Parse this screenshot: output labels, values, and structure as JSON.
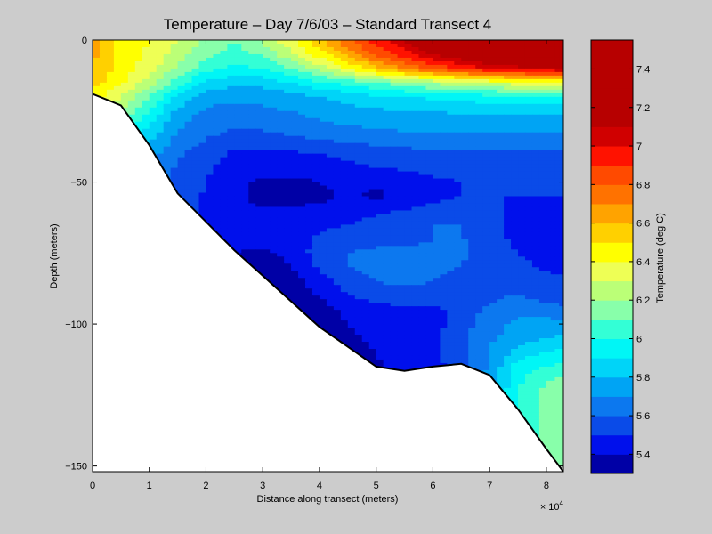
{
  "chart_data": {
    "type": "heatmap",
    "subtype": "filled-contour",
    "title": "Temperature – Day 7/6/03 – Standard Transect 4",
    "xlabel": "Distance along transect (meters)",
    "ylabel": "Depth (meters)",
    "x_exponent_label": "× 10",
    "x_exponent_power": "4",
    "xlim": [
      0,
      83000
    ],
    "ylim": [
      -152,
      0
    ],
    "x_ticks": [
      0,
      10000,
      20000,
      30000,
      40000,
      50000,
      60000,
      70000,
      80000
    ],
    "x_tick_labels": [
      "0",
      "1",
      "2",
      "3",
      "4",
      "5",
      "6",
      "7",
      "8"
    ],
    "y_ticks": [
      0,
      -50,
      -100,
      -150
    ],
    "y_tick_labels": [
      "0",
      "−50",
      "−100",
      "−150"
    ],
    "grid": false,
    "colorbar": {
      "label": "Temperature (deg C)",
      "range": [
        5.3,
        7.55
      ],
      "levels": [
        5.3,
        5.4,
        5.5,
        5.6,
        5.7,
        5.8,
        5.9,
        6.0,
        6.1,
        6.2,
        6.3,
        6.4,
        6.5,
        6.6,
        6.7,
        6.8,
        6.9,
        7.0,
        7.1,
        7.2,
        7.3,
        7.4,
        7.55
      ],
      "colors": [
        "#0000a6",
        "#0010ec",
        "#0a4be8",
        "#0c78ef",
        "#00a4f4",
        "#00d4f8",
        "#00f6f6",
        "#33ffd6",
        "#88ffaa",
        "#bbff77",
        "#eeff55",
        "#ffff00",
        "#ffd000",
        "#ffa300",
        "#ff7200",
        "#ff4a00",
        "#ff1200",
        "#d00000",
        "#b70000",
        "#b70000",
        "#b70000",
        "#b70000"
      ],
      "tick_values": [
        5.4,
        5.6,
        5.8,
        6.0,
        6.2,
        6.4,
        6.6,
        6.8,
        7.0,
        7.2,
        7.4
      ],
      "tick_labels": [
        "5.4",
        "5.6",
        "5.8",
        "6",
        "6.2",
        "6.4",
        "6.6",
        "6.8",
        "7",
        "7.2",
        "7.4"
      ]
    },
    "bathymetry": {
      "x": [
        0,
        5000,
        10000,
        15000,
        20000,
        25000,
        30000,
        35000,
        40000,
        45000,
        50000,
        55000,
        60000,
        65000,
        70000,
        75000,
        80000,
        83000
      ],
      "depth": [
        -19,
        -23,
        -37,
        -54,
        -64,
        -74,
        -83,
        -92,
        -101,
        -108,
        -115,
        -116.5,
        -115,
        -114,
        -118,
        -130,
        -144,
        -152
      ]
    },
    "temperature_grid": {
      "x": [
        0,
        5000,
        10000,
        15000,
        20000,
        25000,
        30000,
        35000,
        40000,
        45000,
        50000,
        55000,
        60000,
        65000,
        70000,
        75000,
        80000,
        83000
      ],
      "depth": [
        0,
        -5,
        -10,
        -15,
        -20,
        -25,
        -30,
        -35,
        -40,
        -45,
        -50,
        -55,
        -60,
        -65,
        -70,
        -75,
        -80,
        -85,
        -90,
        -95,
        -100,
        -105,
        -110,
        -115,
        -120,
        -125,
        -130,
        -135,
        -140,
        -145,
        -150
      ],
      "values": [
        [
          6.62,
          6.48,
          6.4,
          6.3,
          6.18,
          6.1,
          6.22,
          6.38,
          6.58,
          6.78,
          6.95,
          7.1,
          7.25,
          7.35,
          7.48,
          7.52,
          7.52,
          7.52
        ],
        [
          6.62,
          6.48,
          6.38,
          6.26,
          6.12,
          6.06,
          6.12,
          6.28,
          6.46,
          6.64,
          6.82,
          6.96,
          7.1,
          7.22,
          7.32,
          7.38,
          7.4,
          7.4
        ],
        [
          6.6,
          6.46,
          6.34,
          6.18,
          6.04,
          5.98,
          6.0,
          6.1,
          6.24,
          6.4,
          6.56,
          6.7,
          6.82,
          6.92,
          7.0,
          7.06,
          7.08,
          7.1
        ],
        [
          6.55,
          6.42,
          6.25,
          6.05,
          5.88,
          5.82,
          5.84,
          5.9,
          5.98,
          6.04,
          6.1,
          6.16,
          6.22,
          6.28,
          6.32,
          6.36,
          6.38,
          6.4
        ],
        [
          6.45,
          6.3,
          6.1,
          5.88,
          5.75,
          5.72,
          5.74,
          5.76,
          5.8,
          5.84,
          5.88,
          5.9,
          5.92,
          5.94,
          5.96,
          5.98,
          5.98,
          5.98
        ],
        [
          6.35,
          6.2,
          6.0,
          5.78,
          5.68,
          5.66,
          5.68,
          5.7,
          5.74,
          5.76,
          5.78,
          5.8,
          5.8,
          5.82,
          5.82,
          5.82,
          5.82,
          5.82
        ],
        [
          6.25,
          6.1,
          5.9,
          5.72,
          5.64,
          5.62,
          5.63,
          5.65,
          5.68,
          5.7,
          5.72,
          5.73,
          5.74,
          5.74,
          5.74,
          5.74,
          5.74,
          5.74
        ],
        [
          6.15,
          6.0,
          5.82,
          5.66,
          5.6,
          5.55,
          5.55,
          5.58,
          5.6,
          5.62,
          5.64,
          5.66,
          5.66,
          5.66,
          5.66,
          5.66,
          5.66,
          5.66
        ],
        [
          6.05,
          5.92,
          5.75,
          5.62,
          5.55,
          5.48,
          5.47,
          5.48,
          5.5,
          5.52,
          5.54,
          5.56,
          5.58,
          5.58,
          5.58,
          5.58,
          5.58,
          5.58
        ],
        [
          6.0,
          5.85,
          5.7,
          5.58,
          5.52,
          5.45,
          5.44,
          5.45,
          5.46,
          5.48,
          5.5,
          5.52,
          5.54,
          5.55,
          5.56,
          5.56,
          5.56,
          5.56
        ],
        [
          5.95,
          5.82,
          5.68,
          5.56,
          5.5,
          5.44,
          5.38,
          5.37,
          5.4,
          5.44,
          5.42,
          5.4,
          5.48,
          5.5,
          5.52,
          5.52,
          5.52,
          5.52
        ],
        [
          5.92,
          5.8,
          5.66,
          5.55,
          5.49,
          5.42,
          5.36,
          5.34,
          5.36,
          5.42,
          5.38,
          5.44,
          5.48,
          5.5,
          5.5,
          5.5,
          5.5,
          5.5
        ],
        [
          5.9,
          5.78,
          5.64,
          5.54,
          5.48,
          5.43,
          5.41,
          5.42,
          5.44,
          5.46,
          5.48,
          5.5,
          5.52,
          5.56,
          5.52,
          5.48,
          5.48,
          5.48
        ],
        [
          5.88,
          5.76,
          5.63,
          5.53,
          5.48,
          5.45,
          5.44,
          5.45,
          5.47,
          5.5,
          5.54,
          5.57,
          5.6,
          5.6,
          5.52,
          5.48,
          5.48,
          5.48
        ],
        [
          5.86,
          5.75,
          5.62,
          5.52,
          5.47,
          5.44,
          5.43,
          5.45,
          5.52,
          5.56,
          5.57,
          5.58,
          5.6,
          5.61,
          5.53,
          5.48,
          5.48,
          5.48
        ],
        [
          5.85,
          5.74,
          5.61,
          5.51,
          5.46,
          5.4,
          5.38,
          5.42,
          5.55,
          5.6,
          5.62,
          5.62,
          5.61,
          5.61,
          5.55,
          5.5,
          5.48,
          5.48
        ],
        [
          5.84,
          5.73,
          5.6,
          5.5,
          5.45,
          5.42,
          5.37,
          5.4,
          5.52,
          5.6,
          5.63,
          5.63,
          5.62,
          5.6,
          5.58,
          5.52,
          5.49,
          5.49
        ],
        [
          5.83,
          5.72,
          5.6,
          5.5,
          5.45,
          5.42,
          5.38,
          5.36,
          5.44,
          5.56,
          5.6,
          5.62,
          5.6,
          5.57,
          5.58,
          5.55,
          5.52,
          5.51
        ],
        [
          5.82,
          5.71,
          5.6,
          5.5,
          5.45,
          5.42,
          5.4,
          5.37,
          5.4,
          5.5,
          5.54,
          5.56,
          5.55,
          5.53,
          5.58,
          5.6,
          5.56,
          5.55
        ],
        [
          5.82,
          5.7,
          5.6,
          5.5,
          5.45,
          5.42,
          5.4,
          5.38,
          5.37,
          5.42,
          5.46,
          5.48,
          5.47,
          5.55,
          5.62,
          5.68,
          5.65,
          5.62
        ],
        [
          5.82,
          5.7,
          5.6,
          5.5,
          5.45,
          5.42,
          5.4,
          5.38,
          5.36,
          5.4,
          5.44,
          5.45,
          5.46,
          5.56,
          5.66,
          5.72,
          5.74,
          5.72
        ],
        [
          5.82,
          5.7,
          5.6,
          5.5,
          5.45,
          5.42,
          5.4,
          5.38,
          5.37,
          5.38,
          5.42,
          5.46,
          5.48,
          5.56,
          5.68,
          5.76,
          5.8,
          5.82
        ],
        [
          5.82,
          5.7,
          5.6,
          5.5,
          5.45,
          5.42,
          5.4,
          5.38,
          5.37,
          5.36,
          5.4,
          5.46,
          5.48,
          5.55,
          5.7,
          5.84,
          5.9,
          5.92
        ],
        [
          5.82,
          5.7,
          5.6,
          5.5,
          5.45,
          5.42,
          5.4,
          5.38,
          5.37,
          5.36,
          5.38,
          5.44,
          5.47,
          5.54,
          5.72,
          5.94,
          6.0,
          6.02
        ],
        [
          5.82,
          5.7,
          5.6,
          5.5,
          5.45,
          5.42,
          5.4,
          5.38,
          5.37,
          5.36,
          5.38,
          5.44,
          5.47,
          5.54,
          5.74,
          5.98,
          6.1,
          6.12
        ],
        [
          5.82,
          5.7,
          5.6,
          5.5,
          5.45,
          5.42,
          5.4,
          5.38,
          5.37,
          5.36,
          5.38,
          5.44,
          5.47,
          5.54,
          5.76,
          6.0,
          6.14,
          6.18
        ],
        [
          5.82,
          5.7,
          5.6,
          5.5,
          5.45,
          5.42,
          5.4,
          5.38,
          5.37,
          5.36,
          5.38,
          5.44,
          5.47,
          5.54,
          5.76,
          6.0,
          6.14,
          6.2
        ],
        [
          5.82,
          5.7,
          5.6,
          5.5,
          5.45,
          5.42,
          5.4,
          5.38,
          5.37,
          5.36,
          5.38,
          5.44,
          5.47,
          5.54,
          5.76,
          6.0,
          6.14,
          6.2
        ],
        [
          5.82,
          5.7,
          5.6,
          5.5,
          5.45,
          5.42,
          5.4,
          5.38,
          5.37,
          5.36,
          5.38,
          5.44,
          5.47,
          5.54,
          5.76,
          6.0,
          6.14,
          6.2
        ],
        [
          5.82,
          5.7,
          5.6,
          5.5,
          5.45,
          5.42,
          5.4,
          5.38,
          5.37,
          5.36,
          5.38,
          5.44,
          5.47,
          5.54,
          5.76,
          6.0,
          6.14,
          6.2
        ],
        [
          5.82,
          5.7,
          5.6,
          5.5,
          5.45,
          5.42,
          5.4,
          5.38,
          5.37,
          5.36,
          5.38,
          5.44,
          5.47,
          5.54,
          5.76,
          6.0,
          6.14,
          6.2
        ]
      ]
    }
  }
}
